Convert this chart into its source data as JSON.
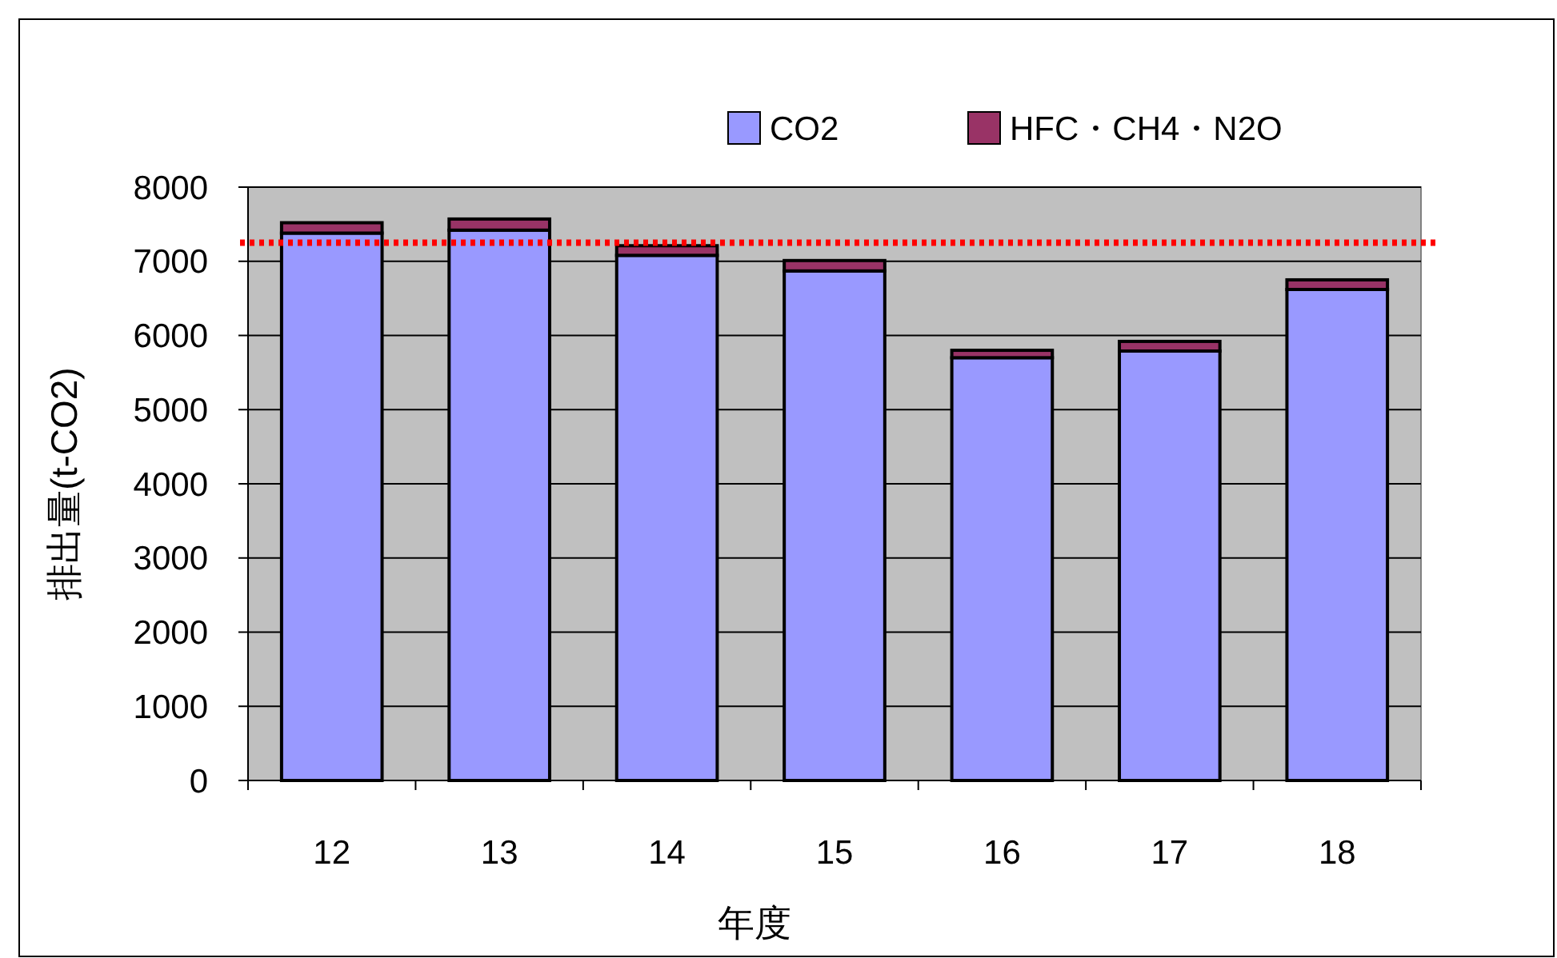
{
  "chart_data": {
    "type": "bar",
    "stacked": true,
    "xlabel": "年度",
    "ylabel": "排出量(t-CO2)",
    "categories": [
      "12",
      "13",
      "14",
      "15",
      "16",
      "17",
      "18"
    ],
    "series": [
      {
        "name": "CO2",
        "color": "#9999ff",
        "values": [
          7380,
          7420,
          7080,
          6870,
          5700,
          5790,
          6620
        ]
      },
      {
        "name": "HFC・CH4・N2O",
        "color": "#993366",
        "values": [
          140,
          150,
          130,
          140,
          100,
          130,
          130
        ]
      }
    ],
    "ylim": [
      0,
      8000
    ],
    "yticks": [
      0,
      1000,
      2000,
      3000,
      4000,
      5000,
      6000,
      7000,
      8000
    ],
    "grid": "y",
    "legend": "top",
    "ref_lines": [
      {
        "axis": "y",
        "value": 7250,
        "color": "#ff0000",
        "line_style": "dotted"
      }
    ]
  }
}
